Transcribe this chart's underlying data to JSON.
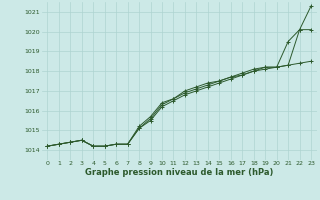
{
  "xlabel": "Graphe pression niveau de la mer (hPa)",
  "xlim": [
    -0.5,
    23.5
  ],
  "ylim": [
    1013.5,
    1021.5
  ],
  "yticks": [
    1014,
    1015,
    1016,
    1017,
    1018,
    1019,
    1020,
    1021
  ],
  "xticks": [
    0,
    1,
    2,
    3,
    4,
    5,
    6,
    7,
    8,
    9,
    10,
    11,
    12,
    13,
    14,
    15,
    16,
    17,
    18,
    19,
    20,
    21,
    22,
    23
  ],
  "bg_color": "#cce9e7",
  "grid_color": "#aed4d1",
  "line_color": "#2d5a2d",
  "line1": [
    1014.2,
    1014.3,
    1014.4,
    1014.5,
    1014.2,
    1014.2,
    1014.3,
    1014.3,
    1015.1,
    1015.5,
    1016.2,
    1016.5,
    1016.8,
    1017.0,
    1017.2,
    1017.4,
    1017.6,
    1017.8,
    1018.0,
    1018.1,
    1018.2,
    1019.5,
    1020.1,
    1021.3
  ],
  "line2": [
    1014.2,
    1014.3,
    1014.4,
    1014.5,
    1014.2,
    1014.2,
    1014.3,
    1014.3,
    1015.1,
    1015.6,
    1016.3,
    1016.6,
    1016.9,
    1017.1,
    1017.3,
    1017.5,
    1017.7,
    1017.8,
    1018.0,
    1018.2,
    1018.2,
    1018.3,
    1020.1,
    1020.1
  ],
  "line3": [
    1014.2,
    1014.3,
    1014.4,
    1014.5,
    1014.2,
    1014.2,
    1014.3,
    1014.3,
    1015.2,
    1015.7,
    1016.4,
    1016.6,
    1017.0,
    1017.2,
    1017.4,
    1017.5,
    1017.7,
    1017.9,
    1018.1,
    1018.2,
    1018.2,
    1018.3,
    1018.4,
    1018.5
  ]
}
